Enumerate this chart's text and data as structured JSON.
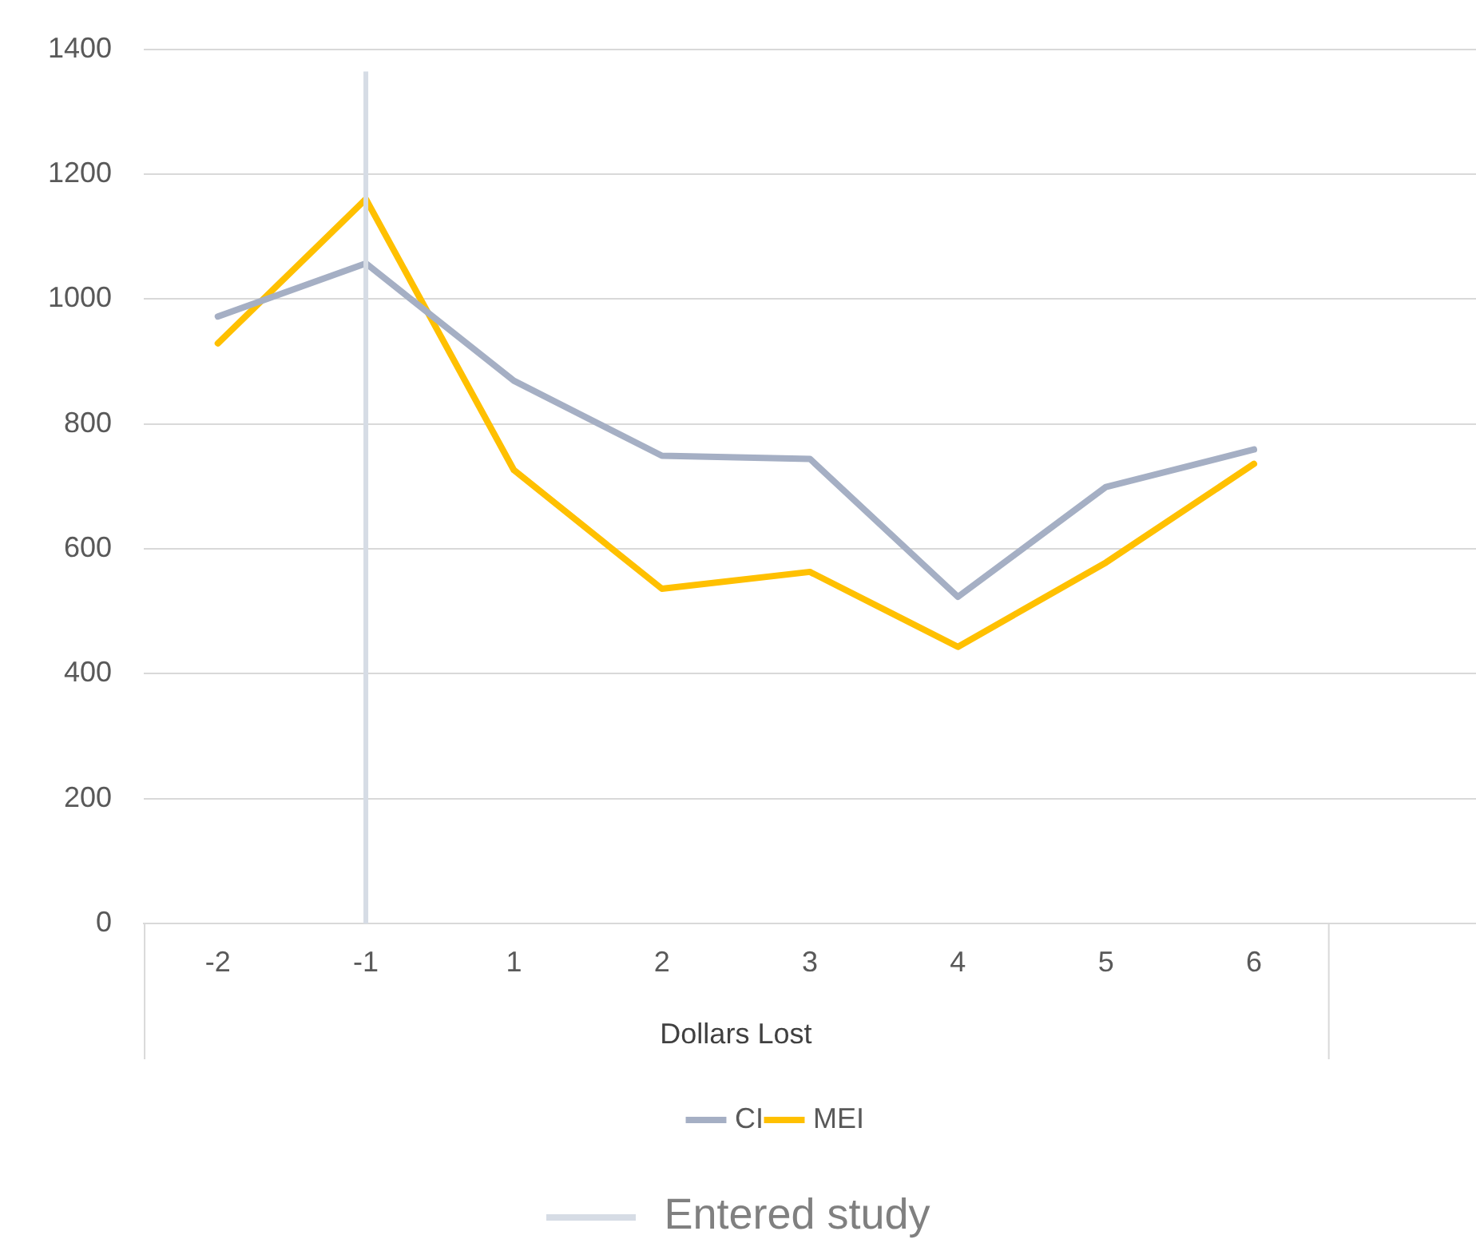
{
  "chart_data": {
    "type": "line",
    "xlabel": "Dollars Lost",
    "categories": [
      "-2",
      "-1",
      "1",
      "2",
      "3",
      "4",
      "5",
      "6",
      null
    ],
    "series": [
      {
        "name": "CI",
        "color": "#a5afc4",
        "values": [
          972,
          1057,
          869,
          749,
          744,
          523,
          699,
          759,
          null
        ]
      },
      {
        "name": "MEI",
        "color": "#ffc000",
        "values": [
          929,
          1160,
          726,
          536,
          563,
          443,
          578,
          736,
          null
        ]
      }
    ],
    "ylim": [
      0,
      1400
    ],
    "yticks": [
      0,
      200,
      400,
      600,
      800,
      1000,
      1200,
      1400
    ],
    "ref_lines": [
      {
        "axis": "x",
        "value": "-1",
        "label": "Entered study",
        "color": "#d6dce5"
      }
    ],
    "grid": "y",
    "legend": "bottom",
    "marker": "none",
    "line_style": "solid"
  }
}
